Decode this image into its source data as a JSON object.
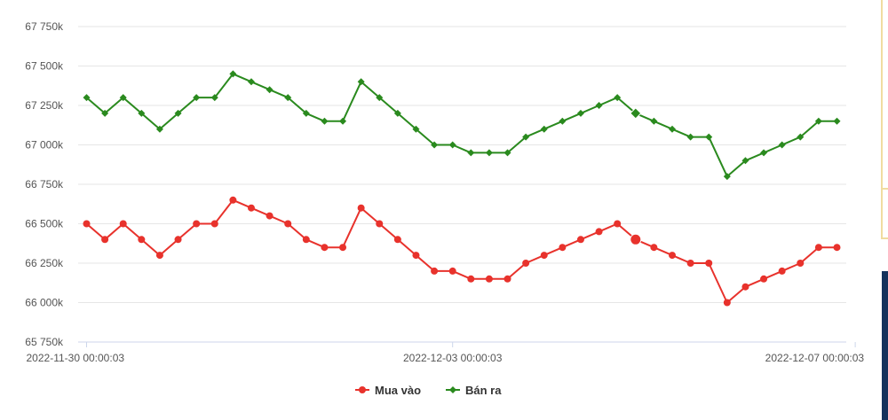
{
  "chart_data": {
    "type": "line",
    "x_labels": [
      "2022-11-30 00:00:03",
      "2022-12-03 00:00:03",
      "2022-12-07 00:00:03"
    ],
    "x_label_indices": [
      0,
      20,
      42
    ],
    "ylim": [
      65750,
      67750
    ],
    "y_ticks": [
      65750,
      66000,
      66250,
      66500,
      66750,
      67000,
      67250,
      67500,
      67750
    ],
    "y_tick_labels": [
      "65 750k",
      "66 000k",
      "66 250k",
      "66 500k",
      "66 750k",
      "67 000k",
      "67 250k",
      "67 500k",
      "67 750k"
    ],
    "grid": true,
    "legend_position": "bottom-center",
    "highlight_index": 30,
    "series": [
      {
        "name": "Mua vào",
        "color": "#e8322c",
        "marker": "circle",
        "values": [
          66500,
          66400,
          66500,
          66400,
          66300,
          66400,
          66500,
          66500,
          66650,
          66600,
          66550,
          66500,
          66400,
          66350,
          66350,
          66600,
          66500,
          66400,
          66300,
          66200,
          66200,
          66150,
          66150,
          66150,
          66250,
          66300,
          66350,
          66400,
          66450,
          66500,
          66400,
          66350,
          66300,
          66250,
          66250,
          66000,
          66100,
          66150,
          66200,
          66250,
          66350,
          66350
        ]
      },
      {
        "name": "Bán ra",
        "color": "#2a8a1e",
        "marker": "diamond",
        "values": [
          67300,
          67200,
          67300,
          67200,
          67100,
          67200,
          67300,
          67300,
          67450,
          67400,
          67350,
          67300,
          67200,
          67150,
          67150,
          67400,
          67300,
          67200,
          67100,
          67000,
          67000,
          66950,
          66950,
          66950,
          67050,
          67100,
          67150,
          67200,
          67250,
          67300,
          67200,
          67150,
          67100,
          67050,
          67050,
          66800,
          66900,
          66950,
          67000,
          67050,
          67150,
          67150
        ]
      }
    ]
  }
}
